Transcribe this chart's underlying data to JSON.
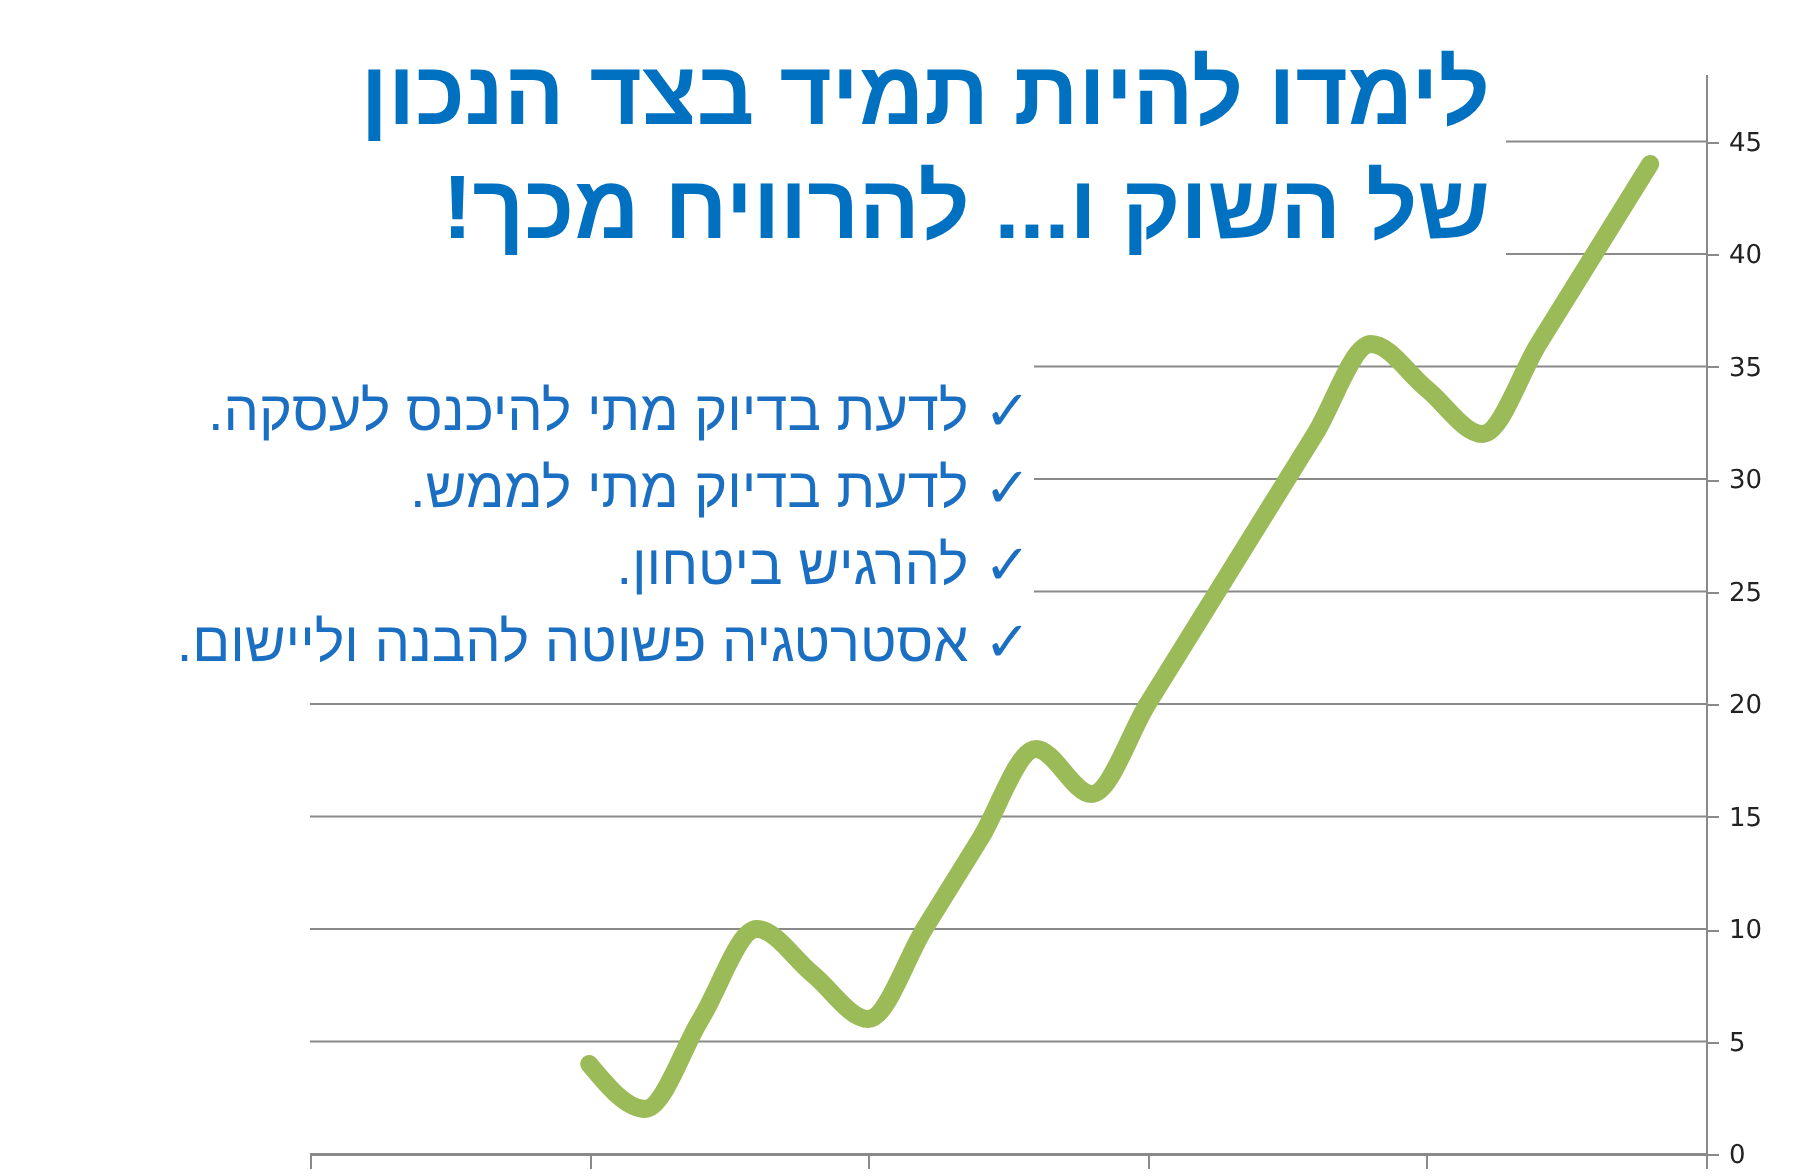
{
  "chart_data": {
    "type": "line",
    "title": "לימדו להיות תמיד בצד הנכון\nשל השוק ו... להרוויח מכך!",
    "annotations": [
      "✓ לדעת בדיוק מתי להיכנס לעסקה.",
      "✓ לדעת בדיוק מתי לממש.",
      "✓ להרגיש ביטחון.",
      "✓ אסטרטגיה פשוטה להבנה וליישום."
    ],
    "categories": [
      null,
      null,
      null,
      null,
      null,
      null,
      null,
      null,
      null,
      null,
      null,
      null,
      null,
      null,
      null,
      null,
      null,
      null,
      null,
      null,
      null,
      null,
      null,
      null,
      null,
      null
    ],
    "values": [
      null,
      null,
      null,
      null,
      null,
      4,
      2,
      6,
      10,
      8,
      6,
      10,
      14,
      18,
      16,
      20,
      24,
      28,
      32,
      36,
      34,
      32,
      36,
      40,
      44,
      null
    ],
    "color": "#9bbb59",
    "ylim": [
      0,
      48
    ],
    "yticks": [
      0,
      5,
      10,
      15,
      20,
      25,
      30,
      35,
      40,
      45
    ],
    "grid": "y",
    "tick_labels": "y",
    "line_style": "solid"
  }
}
